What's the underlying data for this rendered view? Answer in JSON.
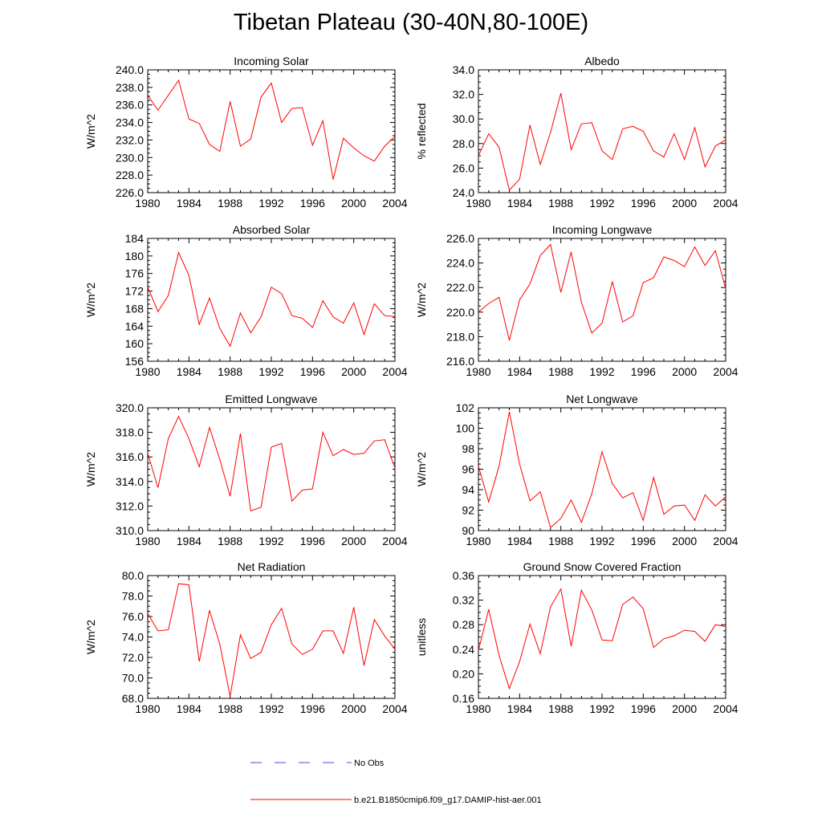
{
  "title": "Tibetan Plateau (30-40N,80-100E)",
  "colors": {
    "model": "#ff0000",
    "obs": "#4a4ad8",
    "axis": "#000000"
  },
  "legend": [
    {
      "label": "No Obs",
      "style": "dashed",
      "color": "#4a4ad8"
    },
    {
      "label": "b.e21.B1850cmip6.f09_g17.DAMIP-hist-aer.001",
      "style": "solid",
      "color": "#ff0000"
    }
  ],
  "chart_data": [
    {
      "type": "line",
      "title": "Incoming Solar",
      "ylabel": "W/m^2",
      "xlim": [
        1980,
        2004
      ],
      "ylim": [
        226,
        240
      ],
      "xticks": [
        "1980",
        "1984",
        "1988",
        "1992",
        "1996",
        "2000",
        "2004"
      ],
      "yticks": [
        "226.0",
        "228.0",
        "230.0",
        "232.0",
        "234.0",
        "236.0",
        "238.0",
        "240.0"
      ],
      "x": [
        1980,
        1981,
        1982,
        1983,
        1984,
        1985,
        1986,
        1987,
        1988,
        1989,
        1990,
        1991,
        1992,
        1993,
        1994,
        1995,
        1996,
        1997,
        1998,
        1999,
        2000,
        2001,
        2002,
        2003,
        2004
      ],
      "series": [
        {
          "name": "b.e21.B1850cmip6.f09_g17.DAMIP-hist-aer.001",
          "values": [
            237.1,
            235.4,
            237.1,
            238.8,
            234.4,
            233.9,
            231.5,
            230.7,
            236.4,
            231.3,
            232.1,
            236.9,
            238.5,
            234.0,
            235.6,
            235.7,
            231.4,
            234.2,
            227.5,
            232.2,
            231.1,
            230.2,
            229.6,
            231.3,
            232.4
          ]
        }
      ]
    },
    {
      "type": "line",
      "title": "Albedo",
      "ylabel": "% reflected",
      "xlim": [
        1980,
        2004
      ],
      "ylim": [
        24,
        34
      ],
      "xticks": [
        "1980",
        "1984",
        "1988",
        "1992",
        "1996",
        "2000",
        "2004"
      ],
      "yticks": [
        "24.0",
        "26.0",
        "28.0",
        "30.0",
        "32.0",
        "34.0"
      ],
      "x": [
        1980,
        1981,
        1982,
        1983,
        1984,
        1985,
        1986,
        1987,
        1988,
        1989,
        1990,
        1991,
        1992,
        1993,
        1994,
        1995,
        1996,
        1997,
        1998,
        1999,
        2000,
        2001,
        2002,
        2003,
        2004
      ],
      "series": [
        {
          "name": "b.e21.B1850cmip6.f09_g17.DAMIP-hist-aer.001",
          "values": [
            27.0,
            28.8,
            27.7,
            24.2,
            25.1,
            29.5,
            26.3,
            28.9,
            32.1,
            27.5,
            29.6,
            29.7,
            27.4,
            26.7,
            29.2,
            29.4,
            29.0,
            27.4,
            26.9,
            28.8,
            26.7,
            29.3,
            26.1,
            27.8,
            28.3
          ]
        }
      ]
    },
    {
      "type": "line",
      "title": "Absorbed Solar",
      "ylabel": "W/m^2",
      "xlim": [
        1980,
        2004
      ],
      "ylim": [
        156,
        184
      ],
      "xticks": [
        "1980",
        "1984",
        "1988",
        "1992",
        "1996",
        "2000",
        "2004"
      ],
      "yticks": [
        "156",
        "160",
        "164",
        "168",
        "172",
        "176",
        "180",
        "184"
      ],
      "x": [
        1980,
        1981,
        1982,
        1983,
        1984,
        1985,
        1986,
        1987,
        1988,
        1989,
        1990,
        1991,
        1992,
        1993,
        1994,
        1995,
        1996,
        1997,
        1998,
        1999,
        2000,
        2001,
        2002,
        2003,
        2004
      ],
      "series": [
        {
          "name": "b.e21.B1850cmip6.f09_g17.DAMIP-hist-aer.001",
          "values": [
            172.9,
            167.3,
            171.0,
            180.8,
            175.6,
            164.4,
            170.4,
            163.5,
            159.4,
            167.0,
            162.5,
            166.1,
            172.9,
            171.4,
            166.4,
            165.8,
            163.7,
            169.8,
            166.1,
            164.7,
            169.3,
            162.1,
            169.1,
            166.4,
            166.2
          ]
        }
      ]
    },
    {
      "type": "line",
      "title": "Incoming Longwave",
      "ylabel": "W/m^2",
      "xlim": [
        1980,
        2004
      ],
      "ylim": [
        216,
        226
      ],
      "xticks": [
        "1980",
        "1984",
        "1988",
        "1992",
        "1996",
        "2000",
        "2004"
      ],
      "yticks": [
        "216.0",
        "218.0",
        "220.0",
        "222.0",
        "224.0",
        "226.0"
      ],
      "x": [
        1980,
        1981,
        1982,
        1983,
        1984,
        1985,
        1986,
        1987,
        1988,
        1989,
        1990,
        1991,
        1992,
        1993,
        1994,
        1995,
        1996,
        1997,
        1998,
        1999,
        2000,
        2001,
        2002,
        2003,
        2004
      ],
      "series": [
        {
          "name": "b.e21.B1850cmip6.f09_g17.DAMIP-hist-aer.001",
          "values": [
            220.0,
            220.7,
            221.2,
            217.7,
            221.0,
            222.3,
            224.6,
            225.5,
            221.6,
            224.9,
            220.8,
            218.3,
            219.1,
            222.5,
            219.2,
            219.7,
            222.4,
            222.8,
            224.5,
            224.2,
            223.7,
            225.3,
            223.8,
            225.0,
            221.9
          ]
        }
      ]
    },
    {
      "type": "line",
      "title": "Emitted Longwave",
      "ylabel": "W/m^2",
      "xlim": [
        1980,
        2004
      ],
      "ylim": [
        310,
        320
      ],
      "xticks": [
        "1980",
        "1984",
        "1988",
        "1992",
        "1996",
        "2000",
        "2004"
      ],
      "yticks": [
        "310.0",
        "312.0",
        "314.0",
        "316.0",
        "318.0",
        "320.0"
      ],
      "x": [
        1980,
        1981,
        1982,
        1983,
        1984,
        1985,
        1986,
        1987,
        1988,
        1989,
        1990,
        1991,
        1992,
        1993,
        1994,
        1995,
        1996,
        1997,
        1998,
        1999,
        2000,
        2001,
        2002,
        2003,
        2004
      ],
      "series": [
        {
          "name": "b.e21.B1850cmip6.f09_g17.DAMIP-hist-aer.001",
          "values": [
            316.3,
            313.5,
            317.5,
            319.3,
            317.5,
            315.2,
            318.4,
            315.8,
            312.8,
            317.9,
            311.6,
            311.9,
            316.8,
            317.1,
            312.4,
            313.3,
            313.4,
            318.0,
            316.1,
            316.6,
            316.2,
            316.3,
            317.3,
            317.4,
            315.1
          ]
        }
      ]
    },
    {
      "type": "line",
      "title": "Net Longwave",
      "ylabel": "W/m^2",
      "xlim": [
        1980,
        2004
      ],
      "ylim": [
        90,
        102
      ],
      "xticks": [
        "1980",
        "1984",
        "1988",
        "1992",
        "1996",
        "2000",
        "2004"
      ],
      "yticks": [
        "90",
        "92",
        "94",
        "96",
        "98",
        "100",
        "102"
      ],
      "x": [
        1980,
        1981,
        1982,
        1983,
        1984,
        1985,
        1986,
        1987,
        1988,
        1989,
        1990,
        1991,
        1992,
        1993,
        1994,
        1995,
        1996,
        1997,
        1998,
        1999,
        2000,
        2001,
        2002,
        2003,
        2004
      ],
      "series": [
        {
          "name": "b.e21.B1850cmip6.f09_g17.DAMIP-hist-aer.001",
          "values": [
            96.3,
            92.8,
            96.3,
            101.6,
            96.5,
            92.9,
            93.8,
            90.3,
            91.2,
            93.0,
            90.8,
            93.6,
            97.7,
            94.6,
            93.2,
            93.7,
            91.0,
            95.2,
            91.6,
            92.4,
            92.5,
            91.0,
            93.5,
            92.4,
            93.3
          ]
        }
      ]
    },
    {
      "type": "line",
      "title": "Net Radiation",
      "ylabel": "W/m^2",
      "xlim": [
        1980,
        2004
      ],
      "ylim": [
        68,
        80
      ],
      "xticks": [
        "1980",
        "1984",
        "1988",
        "1992",
        "1996",
        "2000",
        "2004"
      ],
      "yticks": [
        "68.0",
        "70.0",
        "72.0",
        "74.0",
        "76.0",
        "78.0",
        "80.0"
      ],
      "x": [
        1980,
        1981,
        1982,
        1983,
        1984,
        1985,
        1986,
        1987,
        1988,
        1989,
        1990,
        1991,
        1992,
        1993,
        1994,
        1995,
        1996,
        1997,
        1998,
        1999,
        2000,
        2001,
        2002,
        2003,
        2004
      ],
      "series": [
        {
          "name": "b.e21.B1850cmip6.f09_g17.DAMIP-hist-aer.001",
          "values": [
            76.3,
            74.6,
            74.7,
            79.2,
            79.1,
            71.6,
            76.6,
            73.3,
            68.2,
            74.2,
            71.9,
            72.5,
            75.2,
            76.8,
            73.3,
            72.3,
            72.8,
            74.6,
            74.6,
            72.4,
            76.9,
            71.2,
            75.7,
            74.1,
            72.8
          ]
        }
      ]
    },
    {
      "type": "line",
      "title": "Ground Snow Covered Fraction",
      "ylabel": "unitless",
      "xlim": [
        1980,
        2004
      ],
      "ylim": [
        0.16,
        0.36
      ],
      "xticks": [
        "1980",
        "1984",
        "1988",
        "1992",
        "1996",
        "2000",
        "2004"
      ],
      "yticks": [
        "0.16",
        "0.20",
        "0.24",
        "0.28",
        "0.32",
        "0.36"
      ],
      "x": [
        1980,
        1981,
        1982,
        1983,
        1984,
        1985,
        1986,
        1987,
        1988,
        1989,
        1990,
        1991,
        1992,
        1993,
        1994,
        1995,
        1996,
        1997,
        1998,
        1999,
        2000,
        2001,
        2002,
        2003,
        2004
      ],
      "series": [
        {
          "name": "b.e21.B1850cmip6.f09_g17.DAMIP-hist-aer.001",
          "values": [
            0.238,
            0.305,
            0.23,
            0.176,
            0.22,
            0.281,
            0.233,
            0.309,
            0.338,
            0.245,
            0.336,
            0.304,
            0.255,
            0.254,
            0.313,
            0.325,
            0.306,
            0.243,
            0.257,
            0.262,
            0.271,
            0.269,
            0.253,
            0.28,
            0.277
          ]
        }
      ]
    }
  ]
}
